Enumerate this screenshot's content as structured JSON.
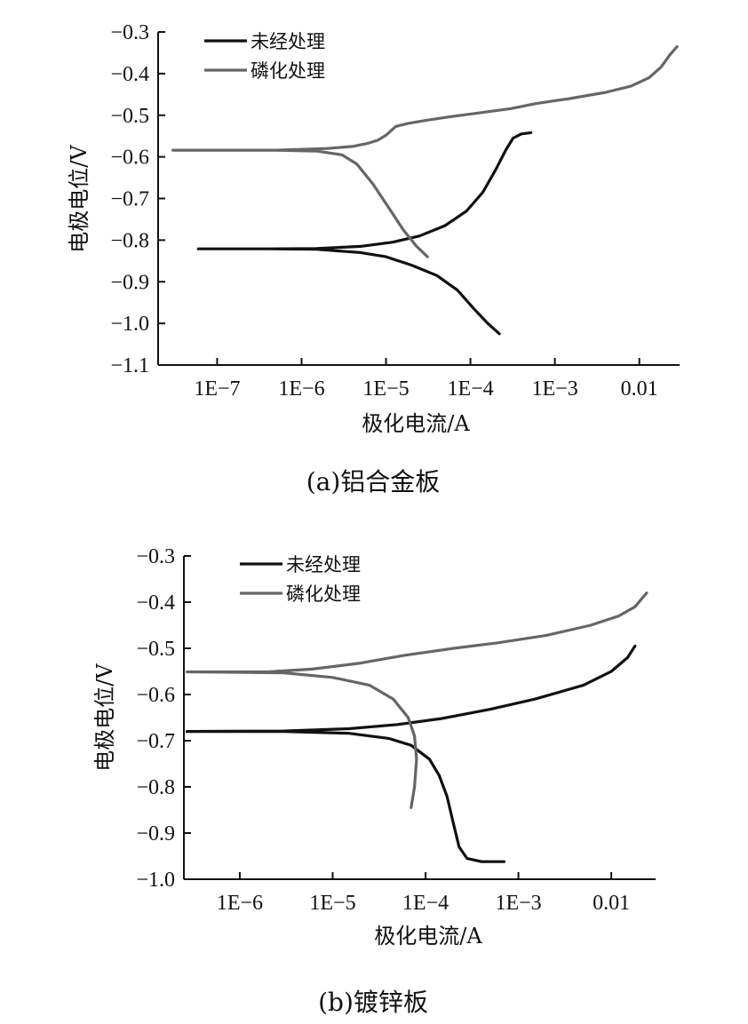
{
  "chart_data": [
    {
      "type": "line",
      "caption": "(a)铝合金板",
      "xlabel": "极化电流/A",
      "ylabel": "电极电位/V",
      "x_scale": "log",
      "xlim": [
        2e-08,
        0.03
      ],
      "ylim": [
        -1.1,
        -0.3
      ],
      "x_ticks": [
        1e-07,
        1e-06,
        1e-05,
        0.0001,
        0.001,
        0.01
      ],
      "x_tick_labels": [
        "1E−7",
        "1E−6",
        "1E−5",
        "1E−4",
        "1E−3",
        "0.01"
      ],
      "y_ticks": [
        -0.3,
        -0.4,
        -0.5,
        -0.6,
        -0.7,
        -0.8,
        -0.9,
        -1.0,
        -1.1
      ],
      "y_tick_labels": [
        "−0.3",
        "−0.4",
        "−0.5",
        "−0.6",
        "−0.7",
        "−0.8",
        "−0.9",
        "−1.0",
        "−1.1"
      ],
      "grid": false,
      "legend_position": "top-left",
      "series": [
        {
          "name": "未经处理",
          "color": "#111111",
          "points": [
            [
              0.00022,
              -1.025
            ],
            [
              0.00016,
              -1.0
            ],
            [
              0.00011,
              -0.965
            ],
            [
              7e-05,
              -0.92
            ],
            [
              4e-05,
              -0.885
            ],
            [
              2e-05,
              -0.86
            ],
            [
              1e-05,
              -0.84
            ],
            [
              5e-06,
              -0.83
            ],
            [
              1.5e-06,
              -0.822
            ],
            [
              4e-07,
              -0.821
            ],
            [
              6e-08,
              -0.821
            ],
            [
              4e-07,
              -0.821
            ],
            [
              1.5e-06,
              -0.82
            ],
            [
              5e-06,
              -0.815
            ],
            [
              1.2e-05,
              -0.805
            ],
            [
              2.5e-05,
              -0.79
            ],
            [
              5e-05,
              -0.765
            ],
            [
              9e-05,
              -0.73
            ],
            [
              0.00014,
              -0.685
            ],
            [
              0.0002,
              -0.63
            ],
            [
              0.00026,
              -0.585
            ],
            [
              0.00032,
              -0.555
            ],
            [
              0.0004,
              -0.545
            ],
            [
              0.00052,
              -0.542
            ]
          ]
        },
        {
          "name": "磷化处理",
          "color": "#666666",
          "points": [
            [
              3.1e-05,
              -0.84
            ],
            [
              2.3e-05,
              -0.815
            ],
            [
              1.6e-05,
              -0.775
            ],
            [
              1.1e-05,
              -0.725
            ],
            [
              7e-06,
              -0.665
            ],
            [
              4.5e-06,
              -0.617
            ],
            [
              3e-06,
              -0.595
            ],
            [
              1.5e-06,
              -0.586
            ],
            [
              5e-07,
              -0.584
            ],
            [
              3e-08,
              -0.584
            ],
            [
              5e-07,
              -0.584
            ],
            [
              2e-06,
              -0.58
            ],
            [
              4e-06,
              -0.575
            ],
            [
              6e-06,
              -0.568
            ],
            [
              8e-06,
              -0.56
            ],
            [
              1e-05,
              -0.548
            ],
            [
              1.3e-05,
              -0.527
            ],
            [
              1.8e-05,
              -0.52
            ],
            [
              3e-05,
              -0.512
            ],
            [
              6e-05,
              -0.503
            ],
            [
              0.00012,
              -0.495
            ],
            [
              0.0003,
              -0.484
            ],
            [
              0.0006,
              -0.472
            ],
            [
              0.0015,
              -0.46
            ],
            [
              0.004,
              -0.445
            ],
            [
              0.008,
              -0.43
            ],
            [
              0.013,
              -0.41
            ],
            [
              0.018,
              -0.385
            ],
            [
              0.023,
              -0.355
            ],
            [
              0.028,
              -0.335
            ]
          ]
        }
      ]
    },
    {
      "type": "line",
      "caption": "(b)镀锌板",
      "xlabel": "极化电流/A",
      "ylabel": "电极电位/V",
      "x_scale": "log",
      "xlim": [
        2.5e-07,
        0.03
      ],
      "ylim": [
        -1.0,
        -0.3
      ],
      "x_ticks": [
        1e-06,
        1e-05,
        0.0001,
        0.001,
        0.01
      ],
      "x_tick_labels": [
        "1E−6",
        "1E−5",
        "1E−4",
        "1E−3",
        "0.01"
      ],
      "y_ticks": [
        -0.3,
        -0.4,
        -0.5,
        -0.6,
        -0.7,
        -0.8,
        -0.9,
        -1.0
      ],
      "y_tick_labels": [
        "−0.3",
        "−0.4",
        "−0.5",
        "−0.6",
        "−0.7",
        "−0.8",
        "−0.9",
        "−1.0"
      ],
      "grid": false,
      "legend_position": "top-left",
      "series": [
        {
          "name": "未经处理",
          "color": "#111111",
          "points": [
            [
              0.0007,
              -0.962
            ],
            [
              0.0004,
              -0.962
            ],
            [
              0.00028,
              -0.955
            ],
            [
              0.00023,
              -0.93
            ],
            [
              0.0002,
              -0.88
            ],
            [
              0.00017,
              -0.82
            ],
            [
              0.00014,
              -0.775
            ],
            [
              0.00011,
              -0.74
            ],
            [
              7e-05,
              -0.71
            ],
            [
              4e-05,
              -0.695
            ],
            [
              1.5e-05,
              -0.684
            ],
            [
              3e-06,
              -0.68
            ],
            [
              2.7e-07,
              -0.68
            ],
            [
              3e-06,
              -0.679
            ],
            [
              1.5e-05,
              -0.674
            ],
            [
              5e-05,
              -0.665
            ],
            [
              0.00015,
              -0.652
            ],
            [
              0.0005,
              -0.632
            ],
            [
              0.0015,
              -0.61
            ],
            [
              0.005,
              -0.58
            ],
            [
              0.01,
              -0.55
            ],
            [
              0.015,
              -0.52
            ],
            [
              0.018,
              -0.495
            ]
          ]
        },
        {
          "name": "磷化处理",
          "color": "#666666",
          "points": [
            [
              7e-05,
              -0.845
            ],
            [
              7.6e-05,
              -0.8
            ],
            [
              8e-05,
              -0.74
            ],
            [
              7.6e-05,
              -0.69
            ],
            [
              6.5e-05,
              -0.65
            ],
            [
              4.5e-05,
              -0.61
            ],
            [
              2.5e-05,
              -0.58
            ],
            [
              1e-05,
              -0.563
            ],
            [
              3e-06,
              -0.553
            ],
            [
              2.7e-07,
              -0.551
            ],
            [
              2e-06,
              -0.551
            ],
            [
              6e-06,
              -0.545
            ],
            [
              2e-05,
              -0.532
            ],
            [
              6e-05,
              -0.515
            ],
            [
              0.0002,
              -0.5
            ],
            [
              0.0006,
              -0.488
            ],
            [
              0.002,
              -0.472
            ],
            [
              0.006,
              -0.45
            ],
            [
              0.012,
              -0.43
            ],
            [
              0.018,
              -0.41
            ],
            [
              0.024,
              -0.38
            ]
          ]
        }
      ]
    }
  ]
}
